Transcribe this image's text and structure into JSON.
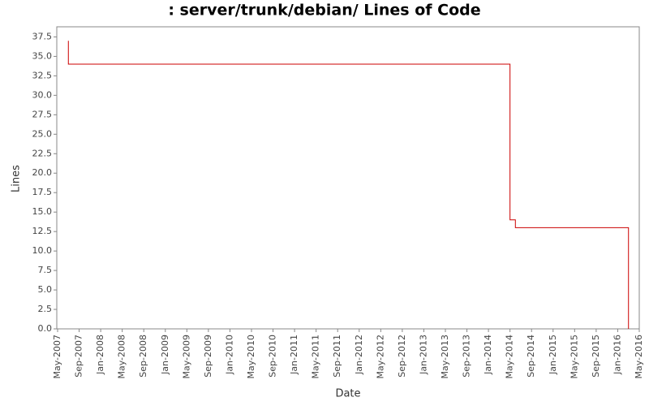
{
  "chart_data": {
    "type": "line",
    "title": ": server/trunk/debian/ Lines of Code",
    "x_label": "Date",
    "y_label": "Lines",
    "series": [
      {
        "name": "Lines",
        "color": "#cc0000",
        "x": [
          "2007-07",
          "2007-07",
          "2014-05",
          "2014-05",
          "2014-06",
          "2014-06",
          "2016-03",
          "2016-03"
        ],
        "values": [
          37,
          34,
          34,
          14,
          14,
          13,
          13,
          0
        ]
      }
    ],
    "xlim": [
      "2007-05",
      "2016-05"
    ],
    "xticks": [
      {
        "value": "2007-05",
        "label": "May-2007"
      },
      {
        "value": "2007-09",
        "label": "Sep-2007"
      },
      {
        "value": "2008-01",
        "label": "Jan-2008"
      },
      {
        "value": "2008-05",
        "label": "May-2008"
      },
      {
        "value": "2008-09",
        "label": "Sep-2008"
      },
      {
        "value": "2009-01",
        "label": "Jan-2009"
      },
      {
        "value": "2009-05",
        "label": "May-2009"
      },
      {
        "value": "2009-09",
        "label": "Sep-2009"
      },
      {
        "value": "2010-01",
        "label": "Jan-2010"
      },
      {
        "value": "2010-05",
        "label": "May-2010"
      },
      {
        "value": "2010-09",
        "label": "Sep-2010"
      },
      {
        "value": "2011-01",
        "label": "Jan-2011"
      },
      {
        "value": "2011-05",
        "label": "May-2011"
      },
      {
        "value": "2011-09",
        "label": "Sep-2011"
      },
      {
        "value": "2012-01",
        "label": "Jan-2012"
      },
      {
        "value": "2012-05",
        "label": "May-2012"
      },
      {
        "value": "2012-09",
        "label": "Sep-2012"
      },
      {
        "value": "2013-01",
        "label": "Jan-2013"
      },
      {
        "value": "2013-05",
        "label": "May-2013"
      },
      {
        "value": "2013-09",
        "label": "Sep-2013"
      },
      {
        "value": "2014-01",
        "label": "Jan-2014"
      },
      {
        "value": "2014-05",
        "label": "May-2014"
      },
      {
        "value": "2014-09",
        "label": "Sep-2014"
      },
      {
        "value": "2015-01",
        "label": "Jan-2015"
      },
      {
        "value": "2015-05",
        "label": "May-2015"
      },
      {
        "value": "2015-09",
        "label": "Sep-2015"
      },
      {
        "value": "2016-01",
        "label": "Jan-2016"
      },
      {
        "value": "2016-05",
        "label": "May-2016"
      }
    ],
    "ylim": [
      0,
      38.8
    ],
    "yticks": [
      {
        "value": 0,
        "label": "0.0"
      },
      {
        "value": 2.5,
        "label": "2.5"
      },
      {
        "value": 5,
        "label": "5.0"
      },
      {
        "value": 7.5,
        "label": "7.5"
      },
      {
        "value": 10,
        "label": "10.0"
      },
      {
        "value": 12.5,
        "label": "12.5"
      },
      {
        "value": 15,
        "label": "15.0"
      },
      {
        "value": 17.5,
        "label": "17.5"
      },
      {
        "value": 20,
        "label": "20.0"
      },
      {
        "value": 22.5,
        "label": "22.5"
      },
      {
        "value": 25,
        "label": "25.0"
      },
      {
        "value": 27.5,
        "label": "27.5"
      },
      {
        "value": 30,
        "label": "30.0"
      },
      {
        "value": 32.5,
        "label": "32.5"
      },
      {
        "value": 35,
        "label": "35.0"
      },
      {
        "value": 37.5,
        "label": "37.5"
      }
    ],
    "grid": false
  }
}
